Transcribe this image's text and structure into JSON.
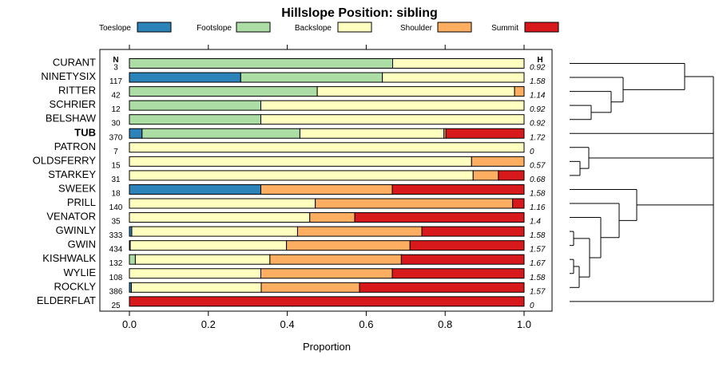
{
  "chart_data": {
    "type": "bar",
    "title": "Hillslope Position: sibling",
    "xlabel": "Proportion",
    "xlim": [
      0,
      1
    ],
    "xticks": [
      "0.0",
      "0.2",
      "0.4",
      "0.6",
      "0.8",
      "1.0"
    ],
    "xtick_values": [
      0,
      0.2,
      0.4,
      0.6,
      0.8,
      1.0
    ],
    "n_header": "N",
    "h_header": "H",
    "legend": [
      {
        "name": "Toeslope",
        "color": "#2b83ba"
      },
      {
        "name": "Footslope",
        "color": "#abdda4"
      },
      {
        "name": "Backslope",
        "color": "#ffffbf"
      },
      {
        "name": "Shoulder",
        "color": "#fdae61"
      },
      {
        "name": "Summit",
        "color": "#d7191c"
      }
    ],
    "rows": [
      {
        "name": "CURANT",
        "bold": false,
        "n": "3",
        "h": "0.92",
        "values": [
          0,
          0.667,
          0.333,
          0,
          0
        ]
      },
      {
        "name": "NINETYSIX",
        "bold": false,
        "n": "117",
        "h": "1.58",
        "values": [
          0.282,
          0.359,
          0.359,
          0,
          0
        ]
      },
      {
        "name": "RITTER",
        "bold": false,
        "n": "42",
        "h": "1.14",
        "values": [
          0,
          0.476,
          0.5,
          0.024,
          0
        ]
      },
      {
        "name": "SCHRIER",
        "bold": false,
        "n": "12",
        "h": "0.92",
        "values": [
          0,
          0.333,
          0.667,
          0,
          0
        ]
      },
      {
        "name": "BELSHAW",
        "bold": false,
        "n": "30",
        "h": "0.92",
        "values": [
          0,
          0.333,
          0.667,
          0,
          0
        ]
      },
      {
        "name": "TUB",
        "bold": true,
        "n": "370",
        "h": "1.72",
        "values": [
          0.032,
          0.4,
          0.365,
          0.005,
          0.198
        ]
      },
      {
        "name": "PATRON",
        "bold": false,
        "n": "7",
        "h": "0",
        "values": [
          0,
          0,
          1,
          0,
          0
        ]
      },
      {
        "name": "OLDSFERRY",
        "bold": false,
        "n": "15",
        "h": "0.57",
        "values": [
          0,
          0,
          0.867,
          0.133,
          0
        ]
      },
      {
        "name": "STARKEY",
        "bold": false,
        "n": "31",
        "h": "0.68",
        "values": [
          0,
          0,
          0.871,
          0.064,
          0.065
        ]
      },
      {
        "name": "SWEEK",
        "bold": false,
        "n": "18",
        "h": "1.58",
        "values": [
          0.333,
          0,
          0,
          0.333,
          0.334
        ]
      },
      {
        "name": "PRILL",
        "bold": false,
        "n": "140",
        "h": "1.16",
        "values": [
          0,
          0,
          0.471,
          0.5,
          0.029
        ]
      },
      {
        "name": "VENATOR",
        "bold": false,
        "n": "35",
        "h": "1.4",
        "values": [
          0,
          0,
          0.457,
          0.114,
          0.429
        ]
      },
      {
        "name": "GWINLY",
        "bold": false,
        "n": "333",
        "h": "1.58",
        "values": [
          0.006,
          0,
          0.42,
          0.315,
          0.259
        ]
      },
      {
        "name": "GWIN",
        "bold": false,
        "n": "434",
        "h": "1.57",
        "values": [
          0,
          0.002,
          0.396,
          0.313,
          0.289
        ]
      },
      {
        "name": "KISHWALK",
        "bold": false,
        "n": "132",
        "h": "1.67",
        "values": [
          0,
          0.015,
          0.341,
          0.333,
          0.311
        ]
      },
      {
        "name": "WYLIE",
        "bold": false,
        "n": "108",
        "h": "1.58",
        "values": [
          0,
          0,
          0.333,
          0.333,
          0.334
        ]
      },
      {
        "name": "ROCKLY",
        "bold": false,
        "n": "386",
        "h": "1.57",
        "values": [
          0.005,
          0,
          0.329,
          0.249,
          0.417
        ]
      },
      {
        "name": "ELDERFLAT",
        "bold": false,
        "n": "25",
        "h": "0",
        "values": [
          0,
          0,
          0,
          0,
          1
        ]
      }
    ],
    "dendrogram": "hierarchical clustering of rows (drawn as tree at right)"
  }
}
